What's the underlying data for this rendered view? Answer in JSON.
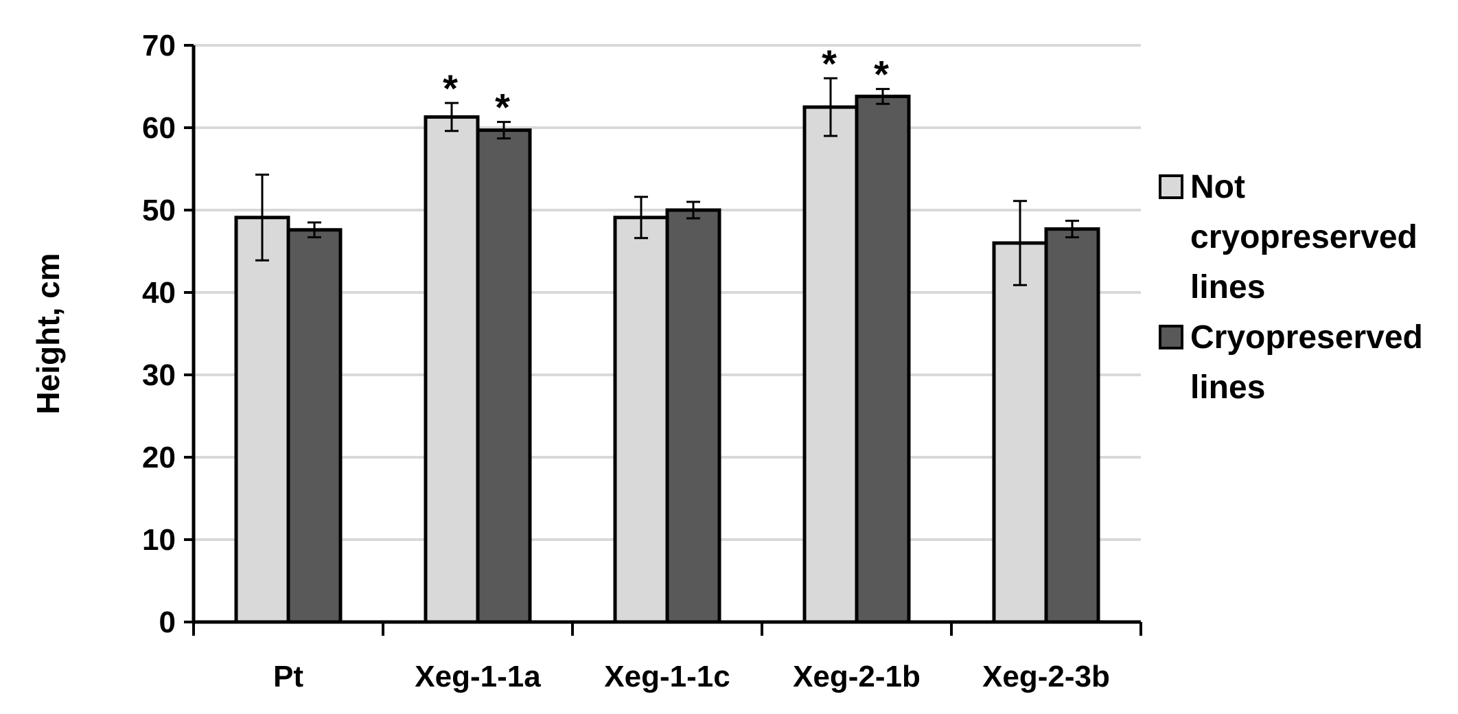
{
  "chart_data": {
    "type": "bar",
    "title": "",
    "xlabel": "",
    "ylabel": "Height, cm",
    "ylim": [
      0,
      70
    ],
    "yticks": [
      "0",
      "10",
      "20",
      "30",
      "40",
      "50",
      "60",
      "70"
    ],
    "grid": true,
    "legend_position": "right",
    "categories": [
      "Pt",
      "Xeg-1-1a",
      "Xeg-1-1c",
      "Xeg-2-1b",
      "Xeg-2-3b"
    ],
    "series": [
      {
        "name": "Not cryopreserved lines",
        "legend_lines": [
          "Not",
          "cryopreserved",
          "lines"
        ],
        "color": "#d9d9d9",
        "values": [
          49.1,
          61.3,
          49.1,
          62.5,
          46.0
        ],
        "errors": [
          5.2,
          1.7,
          2.5,
          3.5,
          5.1
        ],
        "annotations": [
          "",
          "*",
          "",
          "*",
          ""
        ]
      },
      {
        "name": "Cryopreserved lines",
        "legend_lines": [
          "Cryopreserved",
          "lines"
        ],
        "color": "#595959",
        "values": [
          47.6,
          59.7,
          50.0,
          63.8,
          47.7
        ],
        "errors": [
          0.9,
          1.0,
          1.0,
          0.9,
          1.0
        ],
        "annotations": [
          "",
          "*",
          "",
          "*",
          ""
        ]
      }
    ]
  }
}
